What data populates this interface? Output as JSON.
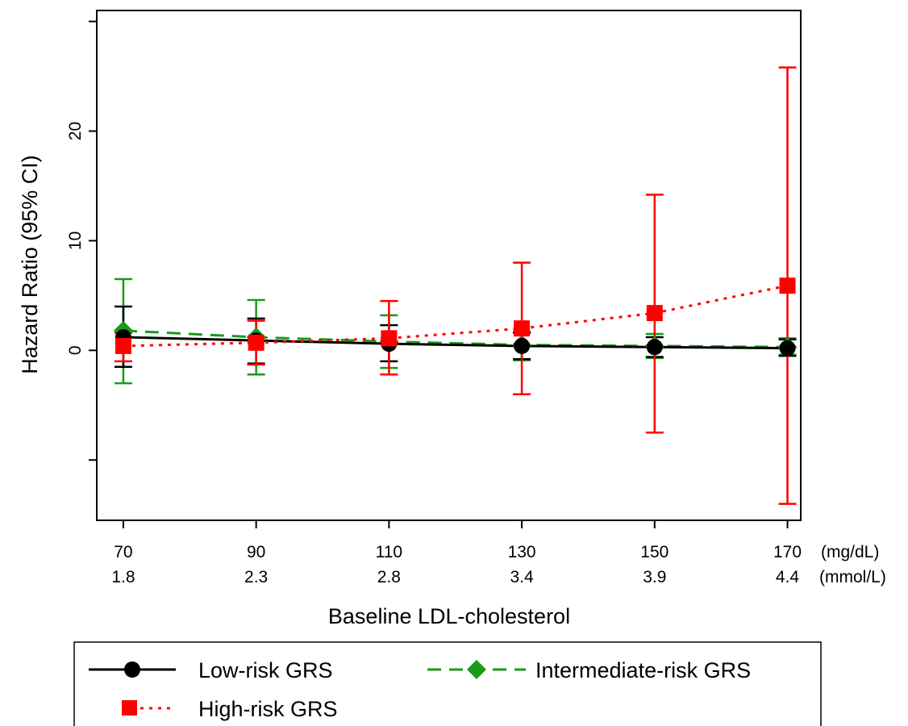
{
  "chart_data": {
    "type": "line",
    "title": "",
    "ylabel": "Hazard Ratio (95% CI)",
    "xlabel": "Baseline LDL-cholesterol",
    "x": [
      70,
      90,
      110,
      130,
      150,
      170
    ],
    "x_units_label": "(mg/dL)",
    "x_secondary": [
      "1.8",
      "2.3",
      "2.8",
      "3.4",
      "3.9",
      "4.4"
    ],
    "x_secondary_units_label": "(mmol/L)",
    "xlim": [
      66,
      172
    ],
    "ylim": [
      -15.5,
      31
    ],
    "yticks": [
      -10,
      0,
      10,
      20,
      30
    ],
    "ytick_labels": [
      "",
      "0",
      "10",
      "20",
      ""
    ],
    "grid": false,
    "legend_position": "bottom",
    "series": [
      {
        "name": "Low-risk GRS",
        "color": "#000000",
        "line_style": "solid",
        "marker": "circle",
        "values": [
          1.2,
          0.9,
          0.6,
          0.4,
          0.3,
          0.2
        ],
        "ci_low": [
          -1.5,
          -1.2,
          -1.0,
          -0.8,
          -0.6,
          -0.5
        ],
        "ci_high": [
          4.0,
          2.9,
          2.3,
          1.6,
          1.2,
          1.0
        ]
      },
      {
        "name": "Intermediate-risk GRS",
        "color": "#1a9a1a",
        "line_style": "dashed",
        "marker": "diamond",
        "values": [
          1.8,
          1.2,
          0.8,
          0.5,
          0.4,
          0.3
        ],
        "ci_low": [
          -3.0,
          -2.2,
          -1.6,
          -0.9,
          -0.7,
          -0.4
        ],
        "ci_high": [
          6.5,
          4.6,
          3.2,
          1.7,
          1.5,
          1.1
        ]
      },
      {
        "name": "High-risk GRS",
        "color": "#ff0000",
        "line_style": "dotted",
        "marker": "square",
        "values": [
          0.4,
          0.7,
          1.1,
          2.0,
          3.4,
          5.9
        ],
        "ci_low": [
          -1.0,
          -1.3,
          -2.2,
          -4.0,
          -7.5,
          -14.0
        ],
        "ci_high": [
          1.6,
          2.7,
          4.5,
          8.0,
          14.2,
          25.8
        ]
      }
    ]
  }
}
